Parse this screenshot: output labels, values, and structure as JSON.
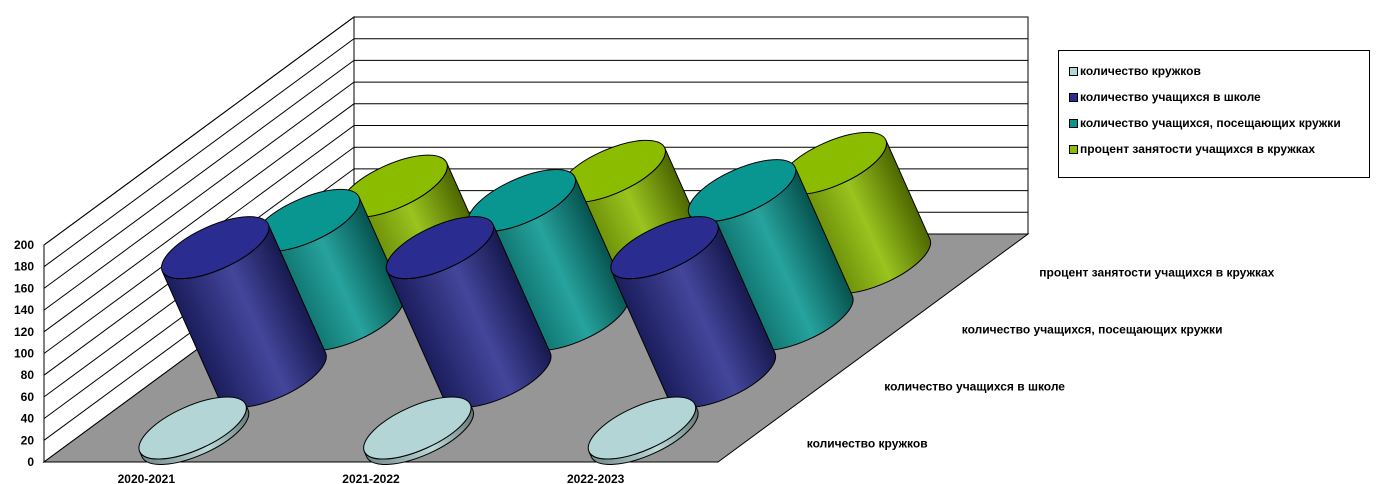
{
  "chart_data": {
    "type": "bar",
    "style": "3d-cylinder",
    "categories": [
      "2020-2021",
      "2021-2022",
      "2022-2023"
    ],
    "series": [
      {
        "name": "количество кружков",
        "values": [
          4,
          4,
          4
        ],
        "color": "#b3d5d6"
      },
      {
        "name": "количество учащихся в школе",
        "values": [
          130,
          130,
          130
        ],
        "color": "#2a2d8f"
      },
      {
        "name": "количество учащихся, посещающих кружки",
        "values": [
          100,
          120,
          130
        ],
        "color": "#0a9690"
      },
      {
        "name": "процент занятости учащихся в кружках",
        "values": [
          77,
          92,
          100
        ],
        "color": "#8cbc00"
      }
    ],
    "y_ticks": [
      "0",
      "20",
      "40",
      "60",
      "80",
      "100",
      "120",
      "140",
      "160",
      "180",
      "200"
    ],
    "ylim": [
      0,
      200
    ],
    "grid": true,
    "legend_position": "top-right",
    "wall_color": "#ffffff",
    "floor_color": "#969696"
  }
}
